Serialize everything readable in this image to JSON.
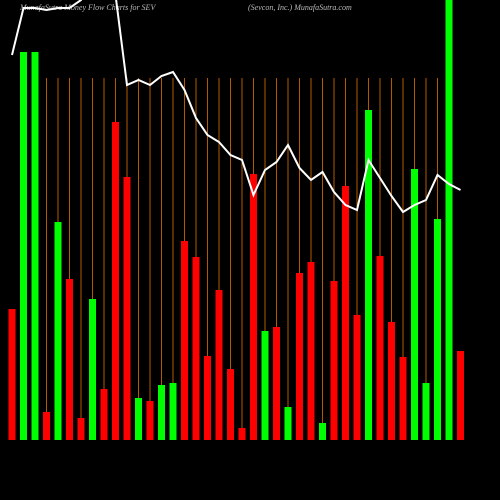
{
  "chart_data": {
    "type": "bar",
    "title": "MunafaSutra  Money Flow  Charts for SEV",
    "subtitle": "(Sevcon,  Inc.) MunafaSutra.com",
    "categories": [
      null,
      null,
      null,
      null,
      null,
      null,
      null,
      null,
      null,
      null,
      null,
      null,
      null,
      null,
      null,
      null,
      null,
      null,
      null,
      null,
      null,
      null,
      null,
      null,
      null,
      null,
      null,
      null,
      null,
      null,
      null,
      null,
      null,
      null,
      null,
      null,
      null,
      null,
      null,
      null
    ],
    "ylim": [
      0,
      440
    ],
    "series": [
      {
        "type": "bar",
        "values": [
          131,
          388,
          388,
          28,
          218,
          161,
          22,
          141,
          51,
          318,
          263,
          42,
          39,
          55,
          57,
          199,
          183,
          84,
          150,
          71,
          12,
          266,
          109,
          113,
          33,
          167,
          178,
          17,
          159,
          254,
          125,
          330,
          184,
          118,
          83,
          271,
          57,
          221,
          460,
          89
        ],
        "colors": [
          "#ff0000",
          "#00ff00",
          "#00ff00",
          "#ff0000",
          "#00ff00",
          "#ff0000",
          "#ff0000",
          "#00ff00",
          "#ff0000",
          "#ff0000",
          "#ff0000",
          "#00ff00",
          "#ff0000",
          "#00ff00",
          "#00ff00",
          "#ff0000",
          "#ff0000",
          "#ff0000",
          "#ff0000",
          "#ff0000",
          "#ff0000",
          "#ff0000",
          "#00ff00",
          "#ff0000",
          "#00ff00",
          "#ff0000",
          "#ff0000",
          "#00ff00",
          "#ff0000",
          "#ff0000",
          "#ff0000",
          "#00ff00",
          "#ff0000",
          "#ff0000",
          "#ff0000",
          "#00ff00",
          "#00ff00",
          "#00ff00",
          "#00ff00",
          "#ff0000"
        ]
      },
      {
        "type": "line",
        "color": "#ffffff",
        "values": [
          385,
          432,
          432,
          430,
          432,
          432,
          440,
          460,
          470,
          445,
          355,
          360,
          355,
          364,
          368,
          350,
          322,
          305,
          298,
          285,
          280,
          245,
          270,
          278,
          295,
          272,
          260,
          268,
          248,
          235,
          230,
          280,
          262,
          244,
          228,
          235,
          240,
          265,
          256,
          250
        ]
      }
    ]
  }
}
